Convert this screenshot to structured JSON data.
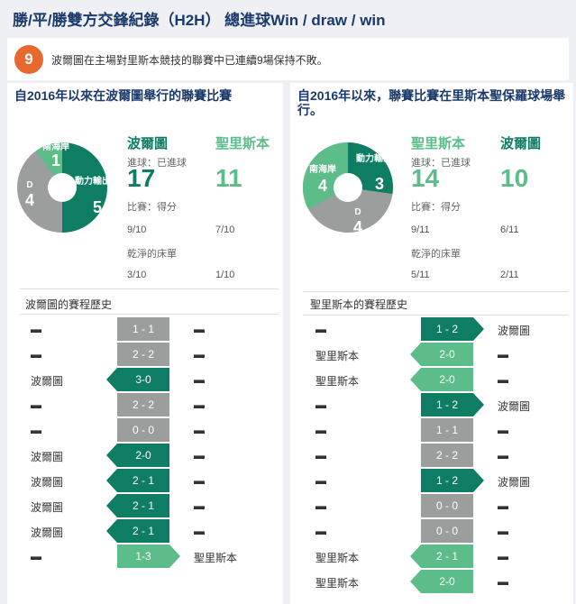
{
  "header": {
    "title": "勝/平/勝雙方交鋒紀錄（H2H） 總進球Win / draw / win"
  },
  "fact": {
    "number": "9",
    "text": "波爾圖在主場對里斯本競技的聯賽中已連續9場保持不敗。"
  },
  "colors": {
    "dark": "#0f7d64",
    "light": "#5cbc8a",
    "grey": "#9b9e9c",
    "placeholder": "#cccccc"
  },
  "left": {
    "title": "自2016年以來在波爾圖舉行的聯賽比賽",
    "pie": {
      "south": {
        "label": "南海岸",
        "value": "1"
      },
      "draw": {
        "label": "D",
        "value": "4"
      },
      "dynamo": {
        "label": "動力輸出軸",
        "value": "5"
      }
    },
    "team1": "波爾圖",
    "team2": "聖里斯本",
    "goals_label": "進球：已進球",
    "goals1": "17",
    "goals2": "11",
    "games_label": "比賽：得分",
    "games1": "9/10",
    "games2": "7/10",
    "cs_label": "乾淨的床單",
    "cs1": "3/10",
    "cs2": "1/10",
    "history_title": "波爾圖的賽程歷史",
    "rows": [
      {
        "left": "",
        "score": "1 - 1",
        "right": "",
        "result": "draw"
      },
      {
        "left": "",
        "score": "2 - 2",
        "right": "",
        "result": "draw"
      },
      {
        "left": "波爾圖",
        "score": "3-0",
        "right": "",
        "result": "win_left"
      },
      {
        "left": "",
        "score": "2 - 2",
        "right": "",
        "result": "draw"
      },
      {
        "left": "",
        "score": "0 - 0",
        "right": "",
        "result": "draw"
      },
      {
        "left": "波爾圖",
        "score": "2-0",
        "right": "",
        "result": "win_left"
      },
      {
        "left": "波爾圖",
        "score": "2 - 1",
        "right": "",
        "result": "win_left"
      },
      {
        "left": "波爾圖",
        "score": "2 - 1",
        "right": "",
        "result": "win_left"
      },
      {
        "left": "波爾圖",
        "score": "2 - 1",
        "right": "",
        "result": "win_left"
      },
      {
        "left": "",
        "score": "1-3",
        "right": "聖里斯本",
        "result": "win_right_light"
      }
    ]
  },
  "right": {
    "title": "自2016年以來，聯賽比賽在里斯本聖保羅球場舉行。",
    "pie": {
      "south": {
        "label": "南海岸",
        "value": "4"
      },
      "draw": {
        "label": "D",
        "value": "4"
      },
      "dynamo": {
        "label": "動力輸出軸",
        "value": "3"
      }
    },
    "team1": "聖里斯本",
    "team2": "波爾圖",
    "goals_label": "進球：已進球",
    "goals1": "14",
    "goals2": "10",
    "games_label": "比賽：得分",
    "games1": "9/11",
    "games2": "6/11",
    "cs_label": "乾淨的床單",
    "cs1": "5/11",
    "cs2": "2/11",
    "history_title": "聖里斯本的賽程歷史",
    "rows": [
      {
        "left": "",
        "score": "1 - 2",
        "right": "波爾圖",
        "result": "win_right"
      },
      {
        "left": "聖里斯本",
        "score": "2-0",
        "right": "",
        "result": "win_left_light"
      },
      {
        "left": "聖里斯本",
        "score": "2-0",
        "right": "",
        "result": "win_left_light"
      },
      {
        "left": "",
        "score": "1 - 2",
        "right": "波爾圖",
        "result": "win_right"
      },
      {
        "left": "",
        "score": "1 - 1",
        "right": "",
        "result": "draw"
      },
      {
        "left": "",
        "score": "2 - 2",
        "right": "",
        "result": "draw"
      },
      {
        "left": "",
        "score": "1 - 2",
        "right": "波爾圖",
        "result": "win_right"
      },
      {
        "left": "",
        "score": "0 - 0",
        "right": "",
        "result": "draw"
      },
      {
        "left": "",
        "score": "0 - 0",
        "right": "",
        "result": "draw"
      },
      {
        "left": "聖里斯本",
        "score": "2 - 1",
        "right": "",
        "result": "win_left_light"
      },
      {
        "left": "聖里斯本",
        "score": "2-0",
        "right": "",
        "result": "win_left_light"
      }
    ]
  }
}
